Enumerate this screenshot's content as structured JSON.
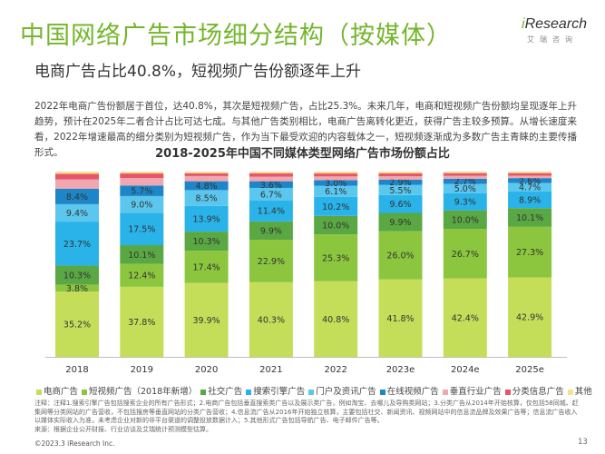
{
  "header": {
    "title": "中国网络广告市场细分结构（按媒体）",
    "subtitle": "电商广告占比40.8%，短视频广告份额逐年上升"
  },
  "logo": {
    "text_i": "i",
    "text_rest": "Research",
    "cn": "艾瑞咨询"
  },
  "summary": "2022年电商广告份额居于首位，达40.8%，其次是短视频广告，占比25.3%。未来几年，电商和短视频广告份额均呈现逐年上升趋势，预计在2025年二者合计占比可达七成。与其他广告类别相比，电商广告离转化更近，获得广告主较多预算。从增长速度来看，2022年增速最高的细分类别为短视频广告，作为当下最受欢迎的内容载体之一，短视频逐渐成为多数广告主青睐的主要传播形式。",
  "chart_data": {
    "type": "bar",
    "stacked": true,
    "title": "2018-2025年中国不同媒体类型网络广告市场份额占比",
    "categories": [
      "2018",
      "2019",
      "2020",
      "2021",
      "2022",
      "2023e",
      "2024e",
      "2025e"
    ],
    "ylim": [
      0,
      100
    ],
    "grid": false,
    "legend_position": "bottom",
    "series": [
      {
        "name": "电商广告",
        "color": "#c5de5a",
        "values": [
          35.2,
          37.8,
          39.9,
          40.3,
          40.8,
          41.8,
          42.4,
          42.9
        ]
      },
      {
        "name": "短视频广告（2018年新增）",
        "color": "#8cc63f",
        "values": [
          3.8,
          12.4,
          17.4,
          22.9,
          25.3,
          26.0,
          26.7,
          27.3
        ]
      },
      {
        "name": "社交广告",
        "color": "#5aa843",
        "values": [
          10.3,
          10.1,
          10.3,
          9.9,
          10.0,
          9.9,
          10.0,
          10.1
        ]
      },
      {
        "name": "搜索引擎广告",
        "color": "#29b3e8",
        "values": [
          23.7,
          17.5,
          13.9,
          11.4,
          10.2,
          9.6,
          9.3,
          8.9
        ]
      },
      {
        "name": "门户及资讯广告",
        "color": "#5bc7ef",
        "values": [
          9.4,
          9.0,
          8.5,
          6.7,
          6.1,
          5.5,
          5.0,
          4.7
        ]
      },
      {
        "name": "在线视频广告",
        "color": "#1e86c8",
        "values": [
          8.4,
          5.7,
          4.8,
          3.6,
          3.0,
          2.9,
          2.7,
          2.6
        ]
      },
      {
        "name": "垂直行业广告",
        "color": "#f2a7b0",
        "values": [
          5.0,
          4.0,
          2.8,
          2.5,
          2.0,
          1.8,
          1.6,
          1.3
        ]
      },
      {
        "name": "分类信息广告",
        "color": "#e4566a",
        "values": [
          3.0,
          2.5,
          1.5,
          1.8,
          1.6,
          1.6,
          1.5,
          1.4
        ]
      },
      {
        "name": "其他",
        "color": "#f7e08c",
        "values": [
          1.2,
          1.0,
          0.9,
          0.9,
          1.0,
          0.9,
          0.8,
          0.8
        ]
      }
    ],
    "labeled_series": [
      0,
      1,
      2,
      3,
      4,
      5
    ]
  },
  "notes": [
    "注释：注释1.搜索引擎广告包括搜索企业的所有广告形式；2.电商广告包括垂直搜索类广告以及展示类广告，例如淘宝、去哪儿及导购类网站；3.分类广告从2014年开始核算，仅包括58同城、赶集网等分类网站的广告营收，不包括搜房等垂直网站的分类广告营收；4.信息流广告从2016年开始独立核算，主要包括社交、新闻资讯、视频网站中的信息流品牌及效果广告等；信息流广告收入以媒体实际收入为准，未考虑企业对新的非平台渠道的调整投放数据计入；5.其他形式广告包括导航广告、电子邮件广告等。",
    "来源：根据企业公开财报、行业访谈及艾瑞统计预测模型估算。"
  ],
  "footer": {
    "copyright": "©2023.3 iResearch Inc.",
    "page": "13"
  }
}
